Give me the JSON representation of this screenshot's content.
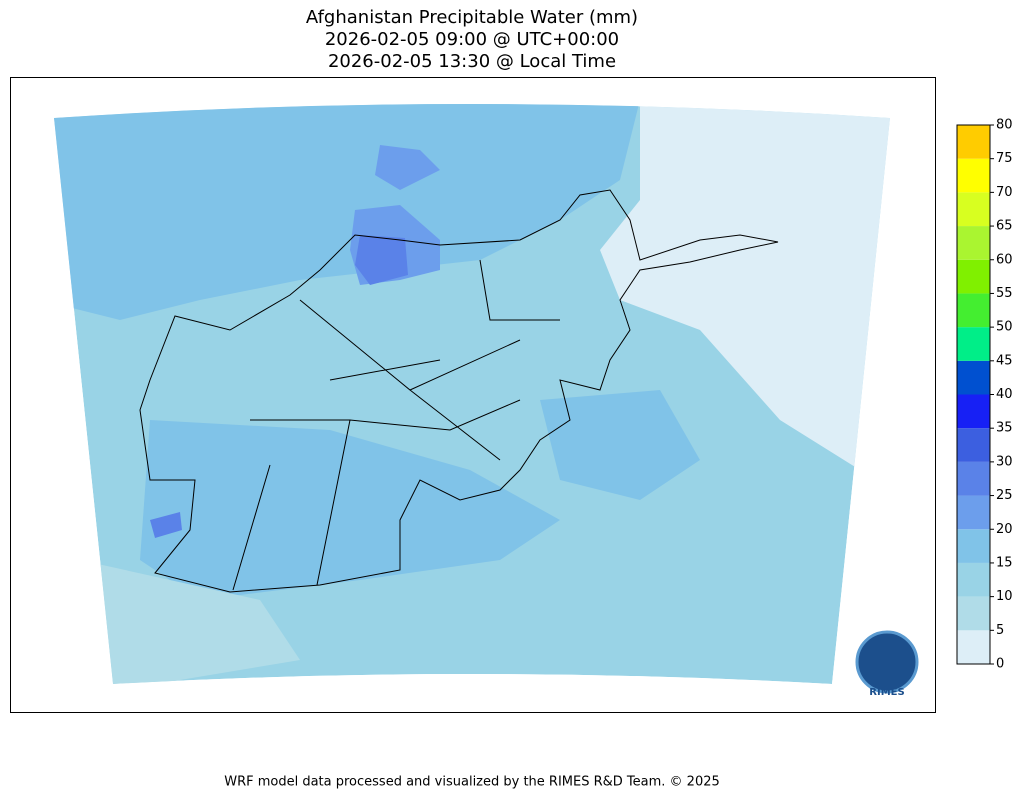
{
  "title": [
    "Afghanistan Precipitable Water (mm)",
    "2026-02-05 09:00 @ UTC+00:00",
    "2026-02-05 13:30 @ Local Time"
  ],
  "colorbar": {
    "ticks": [
      0,
      5,
      10,
      15,
      20,
      25,
      30,
      35,
      40,
      45,
      50,
      55,
      60,
      65,
      70,
      75,
      80
    ],
    "colors": [
      "#ddeef7",
      "#b0dce8",
      "#99d3e6",
      "#80c3e8",
      "#6c9eec",
      "#5a82e8",
      "#3c5fe0",
      "#1720f5",
      "#0050d0",
      "#00ee88",
      "#44ee30",
      "#80f000",
      "#aaf530",
      "#d8ff20",
      "#ffff00",
      "#ffcc00"
    ]
  },
  "logo": "RIMES",
  "footer": "WRF model data processed and visualized by the RIMES R&D Team. © 2025"
}
